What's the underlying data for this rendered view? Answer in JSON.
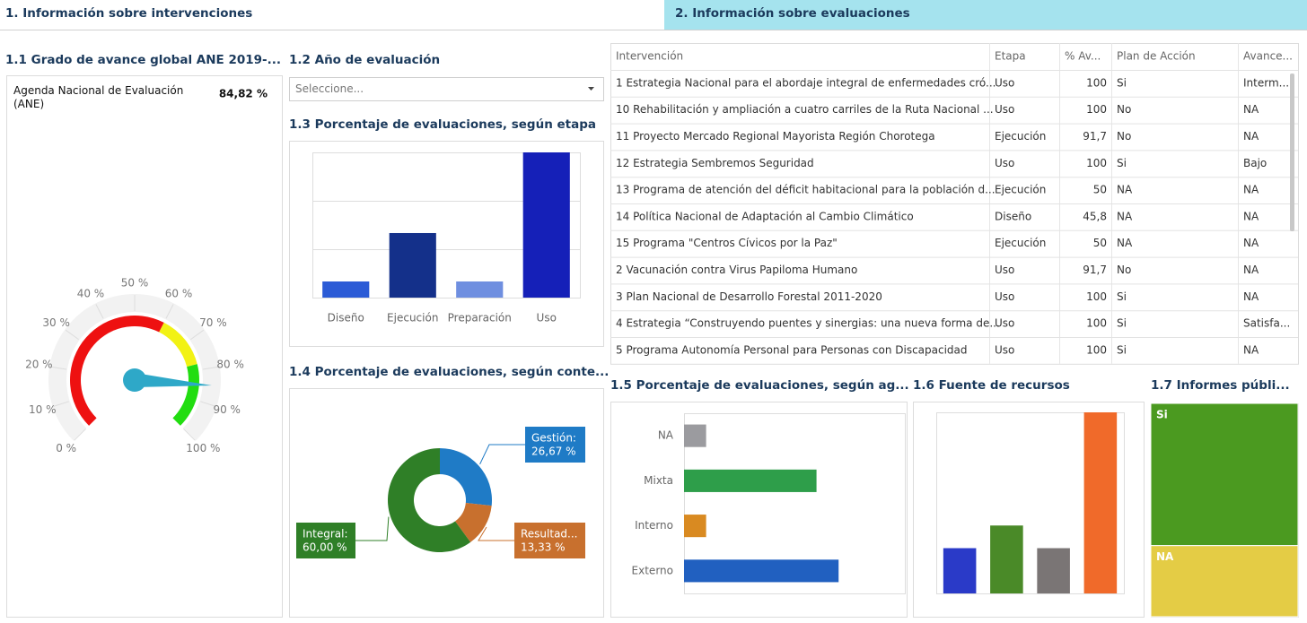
{
  "tabs": [
    "1. Información sobre intervenciones",
    "2. Información sobre evaluaciones"
  ],
  "filter": {
    "title": "1.2 Año de evaluación",
    "placeholder": "Seleccione..."
  },
  "table": {
    "columns": [
      "Intervención",
      "Etapa",
      "% Av...",
      "Plan de Acción",
      "Avance..."
    ],
    "rows": [
      [
        "1 Estrategia Nacional para el abordaje integral de enfermedades cró...",
        "Uso",
        "100",
        "Si",
        "Interm..."
      ],
      [
        "10 Rehabilitación y ampliación a cuatro carriles de la Ruta Nacional ...",
        "Uso",
        "100",
        "No",
        "NA"
      ],
      [
        "11 Proyecto Mercado Regional Mayorista Región Chorotega",
        "Ejecución",
        "91,7",
        "No",
        "NA"
      ],
      [
        "12 Estrategia Sembremos Seguridad",
        "Uso",
        "100",
        "Si",
        "Bajo"
      ],
      [
        "13 Programa de atención del déficit habitacional para la población d...",
        "Ejecución",
        "50",
        "NA",
        "NA"
      ],
      [
        "14 Política Nacional de Adaptación al Cambio Climático",
        "Diseño",
        "45,8",
        "NA",
        "NA"
      ],
      [
        "15 Programa \"Centros Cívicos por la Paz\"",
        "Ejecución",
        "50",
        "NA",
        "NA"
      ],
      [
        "2 Vacunación contra Virus Papiloma Humano",
        "Uso",
        "91,7",
        "No",
        "NA"
      ],
      [
        "3 Plan Nacional de Desarrollo Forestal 2011-2020",
        "Uso",
        "100",
        "Si",
        "NA"
      ],
      [
        "4 Estrategia “Construyendo puentes y sinergias: una nueva forma de...",
        "Uso",
        "100",
        "Si",
        "Satisfa..."
      ],
      [
        "5 Programa Autonomía Personal para Personas con Discapacidad",
        "Uso",
        "100",
        "Si",
        "NA"
      ]
    ]
  },
  "chart_data": [
    {
      "type": "gauge",
      "title": "1.1 Grado de avance global ANE 2019-...",
      "label": "Agenda Nacional de Evaluación (ANE)",
      "value": 84.82,
      "value_label": "84,82 %",
      "ylim": [
        0,
        100
      ],
      "yticks": [
        {
          "value": 0,
          "label": "0 %"
        },
        {
          "value": 10,
          "label": "10 %"
        },
        {
          "value": 20,
          "label": "20 %"
        },
        {
          "value": 30,
          "label": "30 %"
        },
        {
          "value": 40,
          "label": "40 %"
        },
        {
          "value": 50,
          "label": "50 %"
        },
        {
          "value": 60,
          "label": "60 %"
        },
        {
          "value": 70,
          "label": "70 %"
        },
        {
          "value": 80,
          "label": "80 %"
        },
        {
          "value": 90,
          "label": "90 %"
        },
        {
          "value": 100,
          "label": "100 %"
        }
      ],
      "bands": [
        {
          "from": 0,
          "to": 60,
          "color": "#ee1111"
        },
        {
          "from": 60,
          "to": 78,
          "color": "#f2f214"
        },
        {
          "from": 78,
          "to": 100,
          "color": "#22dd11"
        }
      ],
      "needle_color": "#2ea8c8"
    },
    {
      "type": "bar",
      "title": "1.3 Porcentaje de evaluaciones, según etapa",
      "categories": [
        "Diseño",
        "Ejecución",
        "Preparación",
        "Uso"
      ],
      "values": [
        6.67,
        26.67,
        6.67,
        60
      ],
      "colors": [
        "#2b5bd6",
        "#14308a",
        "#6f8fe0",
        "#1520b8"
      ],
      "ylim": [
        0,
        60
      ],
      "yticks": [
        0,
        20,
        40,
        60
      ],
      "grid": true
    },
    {
      "type": "donut",
      "title": "1.4 Porcentaje de evaluaciones, según conte...",
      "categories": [
        "Gestión:",
        "Resultad...",
        "Integral:"
      ],
      "values": [
        26.67,
        13.33,
        60
      ],
      "value_labels": [
        "26,67 %",
        "13,33 %",
        "60,00 %"
      ],
      "colors": [
        "#1f7bc6",
        "#c8702e",
        "#2f7f27"
      ]
    },
    {
      "type": "barh",
      "title": "1.5 Porcentaje de evaluaciones, según ag...",
      "categories": [
        "NA",
        "Mixta",
        "Interno",
        "Externo"
      ],
      "values": [
        6.67,
        40,
        6.67,
        46.67
      ],
      "colors": [
        "#9b9b9f",
        "#2e9e4a",
        "#d98a21",
        "#2160c0"
      ],
      "xlim": [
        0,
        66.67
      ]
    },
    {
      "type": "bar",
      "title": "1.6 Fuente de recursos",
      "categories": [
        null,
        null,
        null,
        null
      ],
      "values": [
        13.33,
        20,
        13.33,
        53.33
      ],
      "colors": [
        "#2a3ac8",
        "#4a8a28",
        "#7a7575",
        "#f06a2a"
      ],
      "ylim": [
        0,
        53.33
      ]
    },
    {
      "type": "treemap",
      "title": "1.7 Informes públi...",
      "categories": [
        "Si",
        "NA"
      ],
      "values": [
        66.67,
        33.33
      ],
      "colors": [
        "#4b9a20",
        "#e4cc45"
      ]
    }
  ]
}
